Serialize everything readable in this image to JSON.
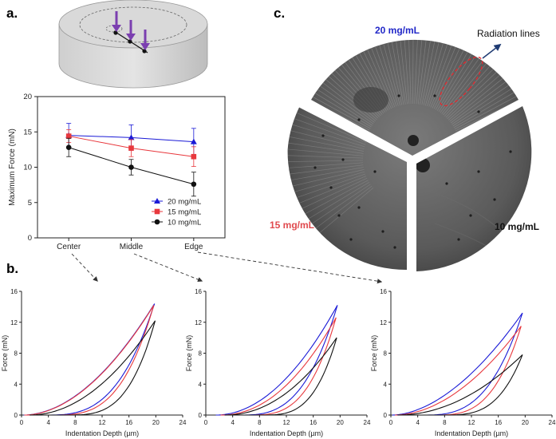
{
  "panel_labels": {
    "a": "a.",
    "b": "b.",
    "c": "c."
  },
  "colors": {
    "blue": "#1a1ad6",
    "red": "#e8383d",
    "black": "#111111",
    "purple": "#7b3fb0"
  },
  "chart_data": [
    {
      "type": "line",
      "panel": "a",
      "categories": [
        "Center",
        "Middle",
        "Edge"
      ],
      "ylabel": "Maximum Force (mN)",
      "ylim": [
        0,
        20
      ],
      "yticks": [
        "0",
        "5",
        "10",
        "15",
        "20"
      ],
      "legend": "bottom-right",
      "series": [
        {
          "name": "20 mg/mL",
          "color": "#1a1ad6",
          "marker": "triangle",
          "values": [
            14.5,
            14.2,
            13.6
          ],
          "err": [
            1.7,
            1.8,
            1.9
          ]
        },
        {
          "name": "15 mg/mL",
          "color": "#e8383d",
          "marker": "square",
          "values": [
            14.4,
            12.7,
            11.5
          ],
          "err": [
            0.9,
            1.2,
            1.4
          ]
        },
        {
          "name": "10 mg/mL",
          "color": "#111111",
          "marker": "circle",
          "values": [
            12.8,
            10.0,
            7.6
          ],
          "err": [
            1.3,
            1.1,
            1.7
          ]
        }
      ]
    },
    {
      "type": "line",
      "panel": "b-center",
      "xlabel": "Indentation Depth (µm)",
      "ylabel": "Force (mN)",
      "xlim": [
        0,
        24
      ],
      "ylim": [
        0,
        16
      ],
      "xticks": [
        "0",
        "4",
        "8",
        "12",
        "16",
        "20",
        "24"
      ],
      "yticks": [
        "0",
        "4",
        "8",
        "12",
        "16"
      ],
      "curves": [
        {
          "color": "#1a1ad6",
          "d0": 0.3,
          "dmax": 19.8,
          "fmax": 14.4,
          "p": 1.9,
          "ud0": 3.2,
          "up": 3.0
        },
        {
          "color": "#e8383d",
          "d0": 0.4,
          "dmax": 19.7,
          "fmax": 14.2,
          "p": 1.9,
          "ud0": 4.0,
          "up": 3.2
        },
        {
          "color": "#111111",
          "d0": 1.2,
          "dmax": 19.9,
          "fmax": 12.2,
          "p": 2.0,
          "ud0": 5.0,
          "up": 3.5
        }
      ]
    },
    {
      "type": "line",
      "panel": "b-middle",
      "xlabel": "Indentation Depth (µm)",
      "ylabel": "Force (mN)",
      "xlim": [
        0,
        24
      ],
      "ylim": [
        0,
        16
      ],
      "xticks": [
        "0",
        "4",
        "8",
        "12",
        "16",
        "20",
        "24"
      ],
      "yticks": [
        "0",
        "4",
        "8",
        "12",
        "16"
      ],
      "curves": [
        {
          "color": "#1a1ad6",
          "d0": 1.5,
          "dmax": 19.6,
          "fmax": 14.2,
          "p": 2.0,
          "ud0": 3.4,
          "up": 3.0
        },
        {
          "color": "#e8383d",
          "d0": 2.2,
          "dmax": 19.4,
          "fmax": 12.6,
          "p": 2.1,
          "ud0": 4.0,
          "up": 3.2
        },
        {
          "color": "#111111",
          "d0": 2.8,
          "dmax": 19.5,
          "fmax": 10.0,
          "p": 2.1,
          "ud0": 5.2,
          "up": 3.4
        }
      ]
    },
    {
      "type": "line",
      "panel": "b-edge",
      "xlabel": "Indentation Depth (µm)",
      "ylabel": "Force (mN)",
      "xlim": [
        0,
        24
      ],
      "ylim": [
        0,
        16
      ],
      "xticks": [
        "0",
        "4",
        "8",
        "12",
        "16",
        "20",
        "24"
      ],
      "yticks": [
        "0",
        "4",
        "8",
        "12",
        "16"
      ],
      "curves": [
        {
          "color": "#1a1ad6",
          "d0": 0.2,
          "dmax": 19.6,
          "fmax": 13.2,
          "p": 1.8,
          "ud0": 4.4,
          "up": 3.0
        },
        {
          "color": "#e8383d",
          "d0": 0.6,
          "dmax": 19.4,
          "fmax": 11.5,
          "p": 1.9,
          "ud0": 5.6,
          "up": 3.2
        },
        {
          "color": "#111111",
          "d0": 1.0,
          "dmax": 19.6,
          "fmax": 7.8,
          "p": 2.0,
          "ud0": 6.4,
          "up": 3.4
        }
      ]
    }
  ],
  "photo": {
    "label_20": "20 mg/mL",
    "label_15": "15 mg/mL",
    "label_10": "10 mg/mL",
    "annotation": "Radiation lines"
  }
}
